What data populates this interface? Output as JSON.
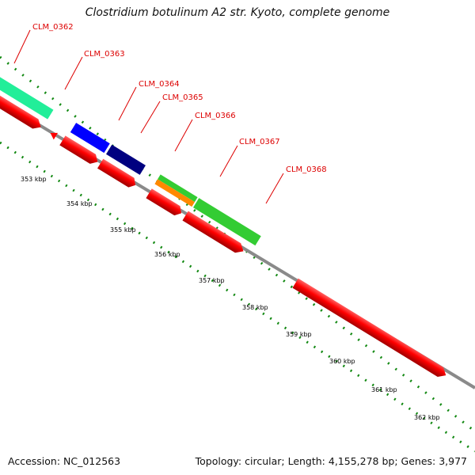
{
  "title": "Clostridium botulinum A2 str. Kyoto, complete genome",
  "footer": {
    "accession": "Accession: NC_012563",
    "summary": "Topology: circular; Length: 4,155,278 bp; Genes: 3,977"
  },
  "colors": {
    "backbone": "#8a8a8a",
    "tick": "#118811",
    "label": "#dd0000",
    "cds": "#ff0000",
    "blue": "#0000ff",
    "navy": "#000080",
    "teal": "#22ee99",
    "green": "#33cc33",
    "orange": "#ff8800"
  },
  "map": {
    "kbp_labels": [
      "353 kbp",
      "354 kbp",
      "355 kbp",
      "356 kbp",
      "357 kbp",
      "358 kbp",
      "359 kbp",
      "360 kbp",
      "361 kbp",
      "362 kbp"
    ],
    "gene_labels": [
      "CLM_0362",
      "CLM_0363",
      "CLM_0364",
      "CLM_0365",
      "CLM_0366",
      "CLM_0367",
      "CLM_0368"
    ]
  }
}
